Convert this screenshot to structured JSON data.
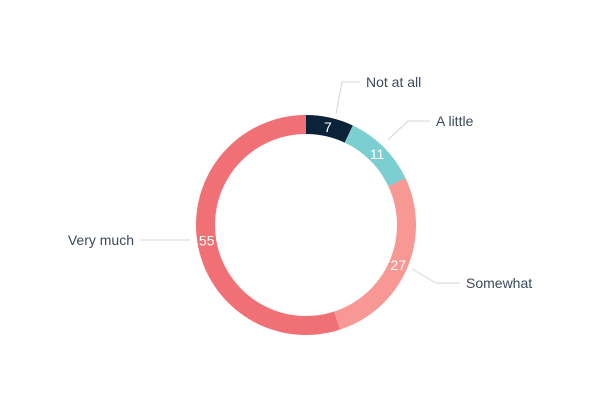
{
  "chart_data": {
    "type": "pie",
    "variant": "donut",
    "categories": [
      "Not at all",
      "A little",
      "Somewhat",
      "Very much"
    ],
    "values": [
      7,
      11,
      27,
      55
    ],
    "colors": [
      "#0b2338",
      "#7ccfd0",
      "#f79894",
      "#f07075"
    ],
    "title": "",
    "legend": "none",
    "data_labels": "inside"
  }
}
